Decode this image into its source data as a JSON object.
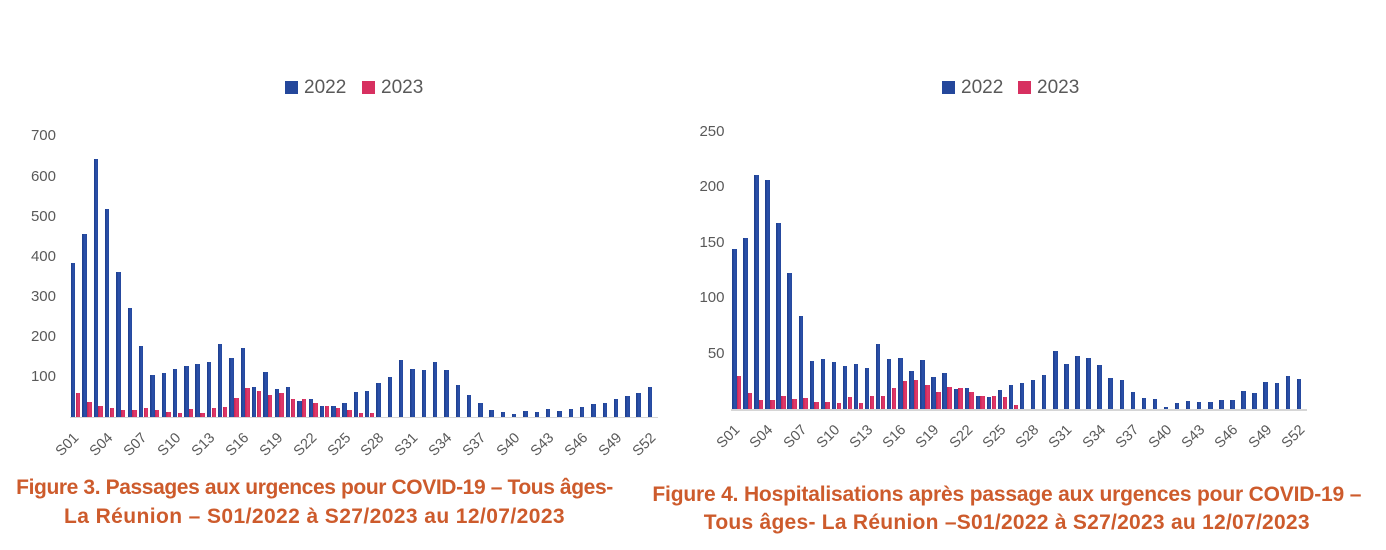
{
  "colors": {
    "series_2022": "#24479b",
    "series_2023": "#d73060",
    "caption": "#cd5b2c",
    "axis_text": "#595959",
    "axis_line": "#d6d6d6",
    "background": "#ffffff"
  },
  "chart_data": [
    {
      "type": "bar",
      "title": "Figure 3. Passages aux urgences pour COVID-19 – Tous âges- La Réunion – S01/2022 à S27/2023 au 12/07/2023",
      "caption_line1": "Figure 3. Passages aux urgences pour COVID-19 – Tous âges-",
      "caption_line2": "La Réunion – S01/2022 à S27/2023 au 12/07/2023",
      "xlabel": "",
      "ylabel": "",
      "ylim": [
        0,
        700
      ],
      "yticks": [
        100,
        200,
        300,
        400,
        500,
        600,
        700
      ],
      "grid": false,
      "legend_position": "top",
      "categories": [
        "S01",
        "S02",
        "S03",
        "S04",
        "S05",
        "S06",
        "S07",
        "S08",
        "S09",
        "S10",
        "S11",
        "S12",
        "S13",
        "S14",
        "S15",
        "S16",
        "S17",
        "S18",
        "S19",
        "S20",
        "S21",
        "S22",
        "S23",
        "S24",
        "S25",
        "S26",
        "S27",
        "S28",
        "S29",
        "S30",
        "S31",
        "S32",
        "S33",
        "S34",
        "S35",
        "S36",
        "S37",
        "S38",
        "S39",
        "S40",
        "S41",
        "S42",
        "S43",
        "S44",
        "S45",
        "S46",
        "S47",
        "S48",
        "S49",
        "S50",
        "S51",
        "S52"
      ],
      "x_tick_labels": [
        "S01",
        "S04",
        "S07",
        "S10",
        "S13",
        "S16",
        "S19",
        "S22",
        "S25",
        "S28",
        "S31",
        "S34",
        "S37",
        "S40",
        "S43",
        "S46",
        "S49",
        "S52"
      ],
      "series": [
        {
          "name": "2022",
          "color": "#24479b",
          "shade": "#1d3c8a",
          "tint": "#2b51ab",
          "values": [
            384,
            454,
            643,
            518,
            360,
            270,
            175,
            103,
            108,
            118,
            125,
            132,
            137,
            182,
            147,
            170,
            75,
            112,
            68,
            73,
            39,
            45,
            27,
            27,
            33,
            61,
            63,
            83,
            99,
            140,
            119,
            117,
            135,
            116,
            79,
            55,
            35,
            17,
            12,
            7,
            13,
            12,
            18,
            14,
            19,
            23,
            32,
            35,
            44,
            52,
            58,
            74
          ]
        },
        {
          "name": "2023",
          "color": "#d73060",
          "shade": "#c02453",
          "tint": "#e03a6b",
          "values": [
            59,
            36,
            27,
            22,
            17,
            17,
            22,
            17,
            12,
            10,
            19,
            9,
            21,
            23,
            47,
            71,
            64,
            53,
            59,
            43,
            45,
            35,
            26,
            22,
            16,
            9,
            8
          ]
        }
      ]
    },
    {
      "type": "bar",
      "title": "Figure 4. Hospitalisations après passage aux urgences pour COVID-19 – Tous âges- La Réunion –S01/2022 à S27/2023 au 12/07/2023",
      "caption_line1": "Figure 4. Hospitalisations après passage aux urgences pour COVID-19 –",
      "caption_line2": "Tous âges- La Réunion –S01/2022 à S27/2023 au 12/07/2023",
      "xlabel": "",
      "ylabel": "",
      "ylim": [
        0,
        250
      ],
      "yticks": [
        50,
        100,
        150,
        200,
        250
      ],
      "grid": false,
      "legend_position": "top",
      "categories": [
        "S01",
        "S02",
        "S03",
        "S04",
        "S05",
        "S06",
        "S07",
        "S08",
        "S09",
        "S10",
        "S11",
        "S12",
        "S13",
        "S14",
        "S15",
        "S16",
        "S17",
        "S18",
        "S19",
        "S20",
        "S21",
        "S22",
        "S23",
        "S24",
        "S25",
        "S26",
        "S27",
        "S28",
        "S29",
        "S30",
        "S31",
        "S32",
        "S33",
        "S34",
        "S35",
        "S36",
        "S37",
        "S38",
        "S39",
        "S40",
        "S41",
        "S42",
        "S43",
        "S44",
        "S45",
        "S46",
        "S47",
        "S48",
        "S49",
        "S50",
        "S51",
        "S52"
      ],
      "x_tick_labels": [
        "S01",
        "S04",
        "S07",
        "S10",
        "S13",
        "S16",
        "S19",
        "S22",
        "S25",
        "S28",
        "S31",
        "S34",
        "S37",
        "S40",
        "S43",
        "S46",
        "S49",
        "S52"
      ],
      "series": [
        {
          "name": "2022",
          "color": "#24479b",
          "shade": "#1d3c8a",
          "tint": "#2b51ab",
          "values": [
            144,
            154,
            211,
            206,
            168,
            123,
            84,
            43,
            45,
            42,
            39,
            41,
            37,
            59,
            45,
            46,
            34,
            44,
            29,
            32,
            18,
            19,
            12,
            11,
            17,
            22,
            23,
            26,
            31,
            52,
            41,
            48,
            46,
            40,
            28,
            26,
            15,
            10,
            9,
            2,
            5,
            7,
            6,
            6,
            8,
            8,
            16,
            14,
            24,
            23,
            30,
            27
          ]
        },
        {
          "name": "2023",
          "color": "#d73060",
          "shade": "#c02453",
          "tint": "#e03a6b",
          "values": [
            30,
            14,
            8,
            8,
            12,
            9,
            10,
            6,
            6,
            5,
            11,
            5,
            12,
            12,
            19,
            25,
            26,
            22,
            15,
            20,
            19,
            15,
            12,
            12,
            11,
            4,
            0
          ]
        }
      ]
    }
  ]
}
